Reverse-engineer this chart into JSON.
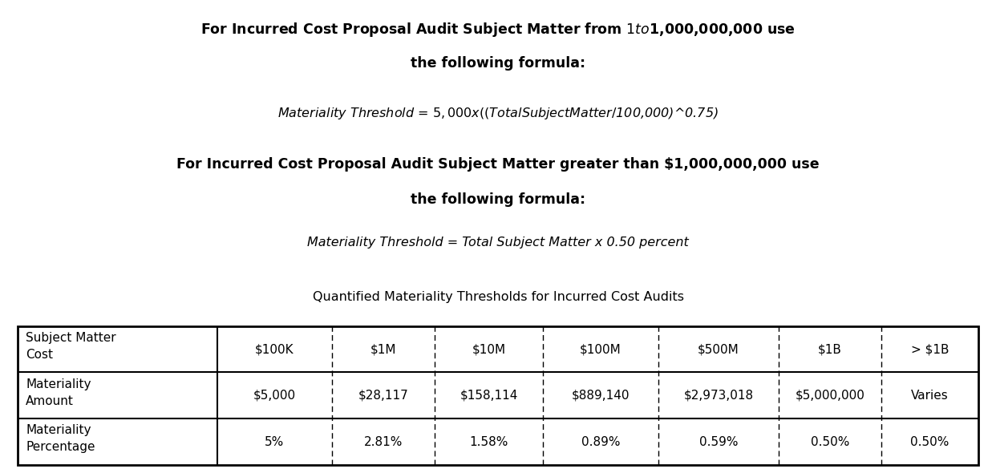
{
  "title1_line1": "For Incurred Cost Proposal Audit Subject Matter from $1 to $1,000,000,000 use",
  "title1_line2": "the following formula:",
  "formula1": "Materiality Threshold = $5,000 x ((Total Subject Matter / $100,000)^0.75)",
  "title2_line1": "For Incurred Cost Proposal Audit Subject Matter greater than $1,000,000,000 use",
  "title2_line2": "the following formula:",
  "formula2": "Materiality Threshold = Total Subject Matter x 0.50 percent",
  "table_title": "Quantified Materiality Thresholds for Incurred Cost Audits",
  "col_headers": [
    "Subject Matter\nCost",
    "$100K",
    "$1M",
    "$10M",
    "$100M",
    "$500M",
    "$1B",
    "> $1B"
  ],
  "row1_label": "Materiality\nAmount",
  "row1_data": [
    "$5,000",
    "$28,117",
    "$158,114",
    "$889,140",
    "$2,973,018",
    "$5,000,000",
    "Varies"
  ],
  "row2_label": "Materiality\nPercentage",
  "row2_data": [
    "5%",
    "2.81%",
    "1.58%",
    "0.89%",
    "0.59%",
    "0.50%",
    "0.50%"
  ],
  "bg_color": "#ffffff",
  "text_color": "#000000",
  "title_fontsize": 12.5,
  "formula_fontsize": 11.5,
  "table_title_fontsize": 11.5,
  "table_fontsize": 11.0,
  "col_widths_rel": [
    1.65,
    0.95,
    0.85,
    0.9,
    0.95,
    1.0,
    0.85,
    0.8
  ]
}
